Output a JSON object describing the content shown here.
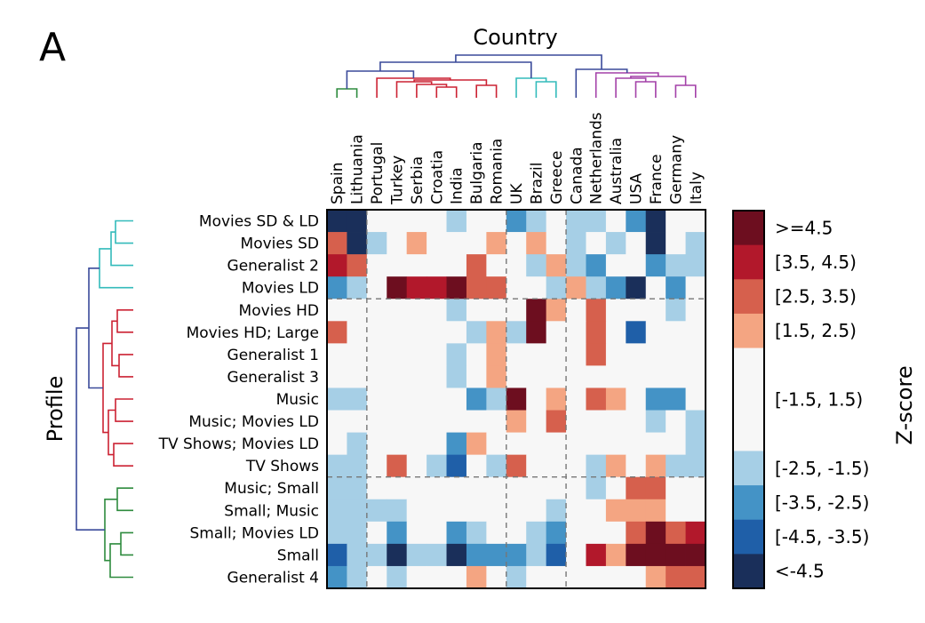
{
  "figure": {
    "panel_letter": "A",
    "column_axis_title": "Country",
    "row_axis_title": "Profile",
    "legend_title": "Z-score"
  },
  "chart_data": {
    "type": "heatmap",
    "columns": [
      "Spain",
      "Lithuania",
      "Portugal",
      "Turkey",
      "Serbia",
      "Croatia",
      "India",
      "Bulgaria",
      "Romania",
      "UK",
      "Brazil",
      "Greece",
      "Canada",
      "Netherlands",
      "Australia",
      "USA",
      "France",
      "Germany",
      "Italy"
    ],
    "rows": [
      "Movies SD & LD",
      "Movies SD",
      "Generalist 2",
      "Movies LD",
      "Movies HD",
      "Movies HD; Large",
      "Generalist 1",
      "Generalist 3",
      "Music",
      "Music; Movies LD",
      "TV Shows; Movies LD",
      "TV Shows",
      "Music; Small",
      "Small; Music",
      "Small; Movies LD",
      "Small",
      "Generalist 4"
    ],
    "legend": {
      "title": "Z-score",
      "bins": [
        {
          "label": ">=4.5",
          "color": "#6d0e1f"
        },
        {
          "label": "[3.5, 4.5)",
          "color": "#b2182b"
        },
        {
          "label": "[2.5, 3.5)",
          "color": "#d6604d"
        },
        {
          "label": "[1.5, 2.5)",
          "color": "#f4a582"
        },
        {
          "label": "[-1.5, 1.5)",
          "color": "#f7f7f7"
        },
        {
          "label": "[-2.5, -1.5)",
          "color": "#a6cfe6"
        },
        {
          "label": "[-3.5, -2.5)",
          "color": "#4493c6"
        },
        {
          "label": "[-4.5, -3.5)",
          "color": "#1f5fa8"
        },
        {
          "label": "<-4.5",
          "color": "#1a2f5a"
        }
      ]
    },
    "z_bins": [
      [
        8,
        8,
        4,
        4,
        4,
        4,
        5,
        4,
        4,
        6,
        5,
        4,
        5,
        5,
        4,
        6,
        8,
        4,
        4
      ],
      [
        2,
        8,
        5,
        4,
        3,
        4,
        4,
        4,
        3,
        4,
        3,
        4,
        5,
        4,
        5,
        4,
        8,
        4,
        5
      ],
      [
        1,
        2,
        4,
        4,
        4,
        4,
        4,
        2,
        4,
        4,
        5,
        3,
        5,
        6,
        4,
        4,
        6,
        5,
        5
      ],
      [
        6,
        5,
        4,
        0,
        1,
        1,
        0,
        2,
        2,
        4,
        4,
        5,
        3,
        5,
        6,
        8,
        4,
        6,
        4
      ],
      [
        4,
        4,
        4,
        4,
        4,
        4,
        5,
        4,
        4,
        4,
        0,
        3,
        4,
        2,
        4,
        4,
        4,
        5,
        4
      ],
      [
        2,
        4,
        4,
        4,
        4,
        4,
        4,
        5,
        3,
        5,
        0,
        4,
        4,
        2,
        4,
        7,
        4,
        4,
        4
      ],
      [
        4,
        4,
        4,
        4,
        4,
        4,
        5,
        4,
        3,
        4,
        4,
        4,
        4,
        2,
        4,
        4,
        4,
        4,
        4
      ],
      [
        4,
        4,
        4,
        4,
        4,
        4,
        5,
        4,
        3,
        4,
        4,
        4,
        4,
        4,
        4,
        4,
        4,
        4,
        4
      ],
      [
        5,
        5,
        4,
        4,
        4,
        4,
        4,
        6,
        5,
        0,
        4,
        3,
        4,
        2,
        3,
        4,
        6,
        6,
        4
      ],
      [
        4,
        4,
        4,
        4,
        4,
        4,
        4,
        4,
        4,
        3,
        4,
        2,
        4,
        4,
        4,
        4,
        5,
        4,
        5
      ],
      [
        4,
        5,
        4,
        4,
        4,
        4,
        6,
        3,
        4,
        4,
        4,
        4,
        4,
        4,
        4,
        4,
        4,
        4,
        5
      ],
      [
        5,
        5,
        4,
        2,
        4,
        5,
        7,
        4,
        5,
        2,
        4,
        4,
        4,
        5,
        3,
        4,
        3,
        5,
        5
      ],
      [
        5,
        5,
        4,
        4,
        4,
        4,
        4,
        4,
        4,
        4,
        4,
        4,
        4,
        5,
        4,
        2,
        2,
        4,
        4
      ],
      [
        5,
        5,
        5,
        5,
        4,
        4,
        4,
        4,
        4,
        4,
        4,
        5,
        4,
        4,
        3,
        3,
        3,
        4,
        4
      ],
      [
        5,
        5,
        4,
        6,
        4,
        4,
        6,
        5,
        4,
        4,
        5,
        6,
        4,
        4,
        4,
        2,
        0,
        2,
        1
      ],
      [
        7,
        5,
        5,
        8,
        5,
        5,
        8,
        6,
        6,
        6,
        5,
        7,
        4,
        1,
        3,
        0,
        0,
        0,
        0
      ],
      [
        6,
        5,
        4,
        5,
        4,
        4,
        4,
        3,
        4,
        5,
        4,
        4,
        4,
        4,
        4,
        4,
        3,
        2,
        2
      ]
    ],
    "column_group_boundaries_after": [
      "Lithuania",
      "Romania",
      "Greece"
    ],
    "row_group_boundaries_after": [
      "Movies LD",
      "TV Shows"
    ],
    "column_clusters": [
      {
        "members": [
          "Spain",
          "Lithuania"
        ],
        "color": "#2e8b3e"
      },
      {
        "members": [
          "Portugal",
          "Turkey",
          "Serbia",
          "Croatia",
          "India",
          "Bulgaria",
          "Romania"
        ],
        "color": "#cc2233"
      },
      {
        "members": [
          "UK",
          "Brazil",
          "Greece"
        ],
        "color": "#33bbbb"
      },
      {
        "members": [
          "Canada",
          "Netherlands",
          "Australia",
          "USA",
          "France",
          "Germany",
          "Italy"
        ],
        "color": "#a340a8"
      }
    ],
    "row_clusters": [
      {
        "members": [
          "Movies SD & LD",
          "Movies SD",
          "Generalist 2",
          "Movies LD"
        ],
        "color": "#33bbbb"
      },
      {
        "members": [
          "Movies HD",
          "Movies HD; Large",
          "Generalist 1",
          "Generalist 3",
          "Music",
          "Music; Movies LD",
          "TV Shows; Movies LD",
          "TV Shows"
        ],
        "color": "#cc2233"
      },
      {
        "members": [
          "Music; Small",
          "Small; Music",
          "Small; Movies LD",
          "Small",
          "Generalist 4"
        ],
        "color": "#2e8b3e"
      }
    ],
    "dendrogram_root_color": "#3a4a9a"
  }
}
